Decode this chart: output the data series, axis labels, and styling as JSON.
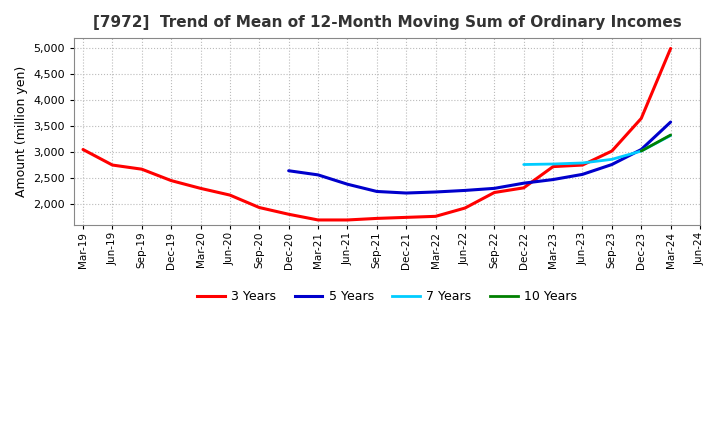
{
  "title": "[7972]  Trend of Mean of 12-Month Moving Sum of Ordinary Incomes",
  "ylabel": "Amount (million yen)",
  "ylim": [
    1600,
    5200
  ],
  "yticks": [
    2000,
    2500,
    3000,
    3500,
    4000,
    4500,
    5000
  ],
  "background_color": "#ffffff",
  "grid_color": "#bbbbbb",
  "series": {
    "3 Years": {
      "color": "#ff0000",
      "x": [
        0,
        1,
        2,
        3,
        4,
        5,
        6,
        7,
        8,
        9,
        10,
        11,
        12,
        13,
        14,
        15,
        16,
        17,
        18,
        19,
        20
      ],
      "values": [
        3050,
        2750,
        2670,
        2450,
        2300,
        2170,
        1930,
        1800,
        1690,
        1690,
        1720,
        1740,
        1760,
        1920,
        2220,
        2310,
        2720,
        2750,
        3020,
        3650,
        5000
      ]
    },
    "5 Years": {
      "color": "#0000cc",
      "x": [
        7,
        8,
        9,
        10,
        11,
        12,
        13,
        14,
        15,
        16,
        17,
        18,
        19,
        20
      ],
      "values": [
        2640,
        2560,
        2380,
        2240,
        2210,
        2230,
        2260,
        2300,
        2400,
        2470,
        2570,
        2760,
        3050,
        3580
      ]
    },
    "7 Years": {
      "color": "#00ccff",
      "x": [
        15,
        16,
        17,
        18,
        19,
        20
      ],
      "values": [
        2760,
        2770,
        2790,
        2860,
        3020,
        3320
      ]
    },
    "10 Years": {
      "color": "#008000",
      "x": [
        19,
        20
      ],
      "values": [
        3020,
        3330
      ]
    }
  },
  "x_labels": [
    "Mar-19",
    "Jun-19",
    "Sep-19",
    "Dec-19",
    "Mar-20",
    "Jun-20",
    "Sep-20",
    "Dec-20",
    "Mar-21",
    "Jun-21",
    "Sep-21",
    "Dec-21",
    "Mar-22",
    "Jun-22",
    "Sep-22",
    "Dec-22",
    "Mar-23",
    "Jun-23",
    "Sep-23",
    "Dec-23",
    "Mar-24",
    "Jun-24"
  ],
  "legend_labels": [
    "3 Years",
    "5 Years",
    "7 Years",
    "10 Years"
  ],
  "legend_colors": [
    "#ff0000",
    "#0000cc",
    "#00ccff",
    "#008000"
  ],
  "title_fontsize": 11,
  "ylabel_fontsize": 9,
  "tick_fontsize": 8,
  "xtick_fontsize": 7.5
}
